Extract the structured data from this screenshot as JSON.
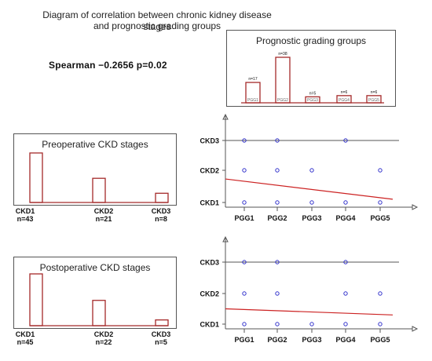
{
  "figure": {
    "title_line1": "Diagram of correlation between chronic kidney disease stages",
    "title_line2": "and prognostic grading groups",
    "stat_text": "Spearman −0.2656 p=0.02"
  },
  "chart_data": [
    {
      "type": "bar",
      "title": "Prognostic grading groups",
      "categories": [
        "PGG1",
        "PGG2",
        "PGG3",
        "PGG4",
        "PGG5"
      ],
      "bar_labels": [
        "n=17",
        "n=38",
        "n=5",
        "n=6",
        "n=6"
      ],
      "values": [
        17,
        38,
        5,
        6,
        6
      ]
    },
    {
      "type": "bar",
      "title": "Preoperative CKD stages",
      "categories": [
        "CKD1",
        "CKD2",
        "CKD3"
      ],
      "count_labels": [
        "n=43",
        "n=21",
        "n=8"
      ],
      "values": [
        43,
        21,
        8
      ]
    },
    {
      "type": "bar",
      "title": "Postoperative CKD stages",
      "categories": [
        "CKD1",
        "CKD2",
        "CKD3"
      ],
      "count_labels": [
        "n=45",
        "n=22",
        "n=5"
      ],
      "values": [
        45,
        22,
        5
      ]
    },
    {
      "type": "scatter",
      "x_categories": [
        "PGG1",
        "PGG2",
        "PGG3",
        "PGG4",
        "PGG5"
      ],
      "y_categories": [
        "CKD1",
        "CKD2",
        "CKD3"
      ],
      "points": [
        [
          "PGG1",
          "CKD3"
        ],
        [
          "PGG2",
          "CKD3"
        ],
        [
          "PGG4",
          "CKD3"
        ],
        [
          "PGG1",
          "CKD2"
        ],
        [
          "PGG2",
          "CKD2"
        ],
        [
          "PGG3",
          "CKD2"
        ],
        [
          "PGG5",
          "CKD2"
        ],
        [
          "PGG1",
          "CKD1"
        ],
        [
          "PGG2",
          "CKD1"
        ],
        [
          "PGG3",
          "CKD1"
        ],
        [
          "PGG4",
          "CKD1"
        ],
        [
          "PGG5",
          "CKD1"
        ]
      ],
      "trend_line": {
        "from": [
          0.4,
          1.73
        ],
        "to": [
          5.5,
          1.1
        ]
      },
      "point_color": "#3333cc",
      "line_color": "#cc2222"
    },
    {
      "type": "scatter",
      "x_categories": [
        "PGG1",
        "PGG2",
        "PGG3",
        "PGG4",
        "PGG5"
      ],
      "y_categories": [
        "CKD1",
        "CKD2",
        "CKD3"
      ],
      "points": [
        [
          "PGG1",
          "CKD3"
        ],
        [
          "PGG2",
          "CKD3"
        ],
        [
          "PGG4",
          "CKD3"
        ],
        [
          "PGG1",
          "CKD2"
        ],
        [
          "PGG2",
          "CKD2"
        ],
        [
          "PGG4",
          "CKD2"
        ],
        [
          "PGG5",
          "CKD2"
        ],
        [
          "PGG1",
          "CKD1"
        ],
        [
          "PGG2",
          "CKD1"
        ],
        [
          "PGG3",
          "CKD1"
        ],
        [
          "PGG4",
          "CKD1"
        ],
        [
          "PGG5",
          "CKD1"
        ]
      ],
      "trend_line": {
        "from": [
          0.4,
          1.5
        ],
        "to": [
          5.5,
          1.3
        ]
      },
      "point_color": "#3333cc",
      "line_color": "#cc2222"
    }
  ],
  "colors": {
    "bar_stroke": "#a52a2a",
    "axis": "#555555"
  }
}
